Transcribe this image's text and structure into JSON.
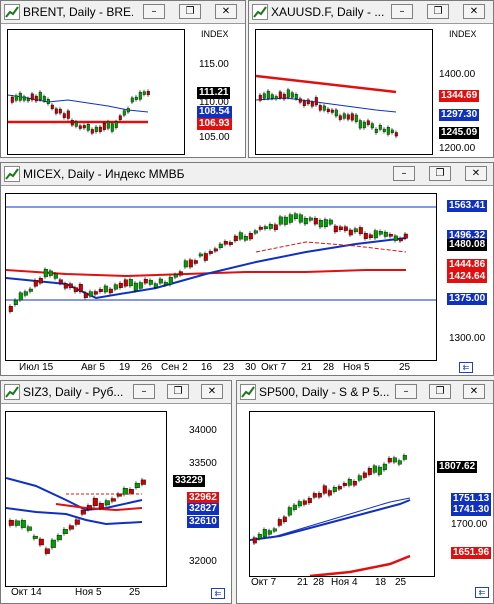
{
  "windows": {
    "brent": {
      "title": "BRENT, Daily - BRE...",
      "index_label": "INDEX",
      "axis_labels": [
        "115.00",
        "110.00",
        "105.00"
      ],
      "price_labels": {
        "last": "111.21",
        "ma_blue": "108.54",
        "ma_red": "106.93"
      }
    },
    "xauusd": {
      "title": "XAUUSD.F, Daily - ...",
      "index_label": "INDEX",
      "axis_labels": [
        "1400.00",
        "1200.00"
      ],
      "price_labels": {
        "ma_red": "1344.69",
        "ma_blue": "1297.30",
        "last": "1245.09"
      }
    },
    "micex": {
      "title": "MICEX, Daily - Индекс ММВБ",
      "axis_labels": [
        "1300.00"
      ],
      "price_labels": {
        "top_line": "1563.41",
        "partial": "1496.32",
        "last": "1480.08",
        "ma_red1": "1444.86",
        "ma_red2": "1424.64",
        "bottom_line": "1375.00"
      },
      "x_labels": [
        "Июл 15",
        "Авг 5",
        "19",
        "26",
        "Сен 2",
        "16",
        "23",
        "30",
        "Окт 7",
        "21",
        "28",
        "Ноя 5",
        "25"
      ]
    },
    "siz3": {
      "title": "SIZ3, Daily - Руб...",
      "axis_labels": [
        "34000",
        "33500",
        "32000"
      ],
      "price_labels": {
        "last": "33229",
        "ma_red": "32962",
        "ma_blue1": "32827",
        "ma_blue2": "32610"
      },
      "x_labels": [
        "Окт 14",
        "Ноя 5",
        "25"
      ]
    },
    "sp500": {
      "title": "SP500, Daily - S & P 5...",
      "axis_labels": [
        "1700.00"
      ],
      "price_labels": {
        "last": "1807.62",
        "ma_blue1": "1751.13",
        "ma_blue2": "1741.30",
        "ma_red": "1651.96"
      },
      "x_labels": [
        "Окт 7",
        "21",
        "28",
        "Ноя 4",
        "18",
        "25"
      ]
    }
  },
  "buttons": {
    "minimize": "–",
    "restore": "❐",
    "close": "✕",
    "scroll": "⇇"
  },
  "colors": {
    "candle_up": "#00a000",
    "candle_down": "#cc0000",
    "ma_blue": "#1030c0",
    "ma_red": "#e01010",
    "badge_blue": "#1030c0",
    "badge_red": "#e01010",
    "badge_black": "#000000"
  },
  "icons": [
    "chart-icon",
    "minimize-icon",
    "restore-icon",
    "close-icon",
    "scroll-end-icon"
  ]
}
